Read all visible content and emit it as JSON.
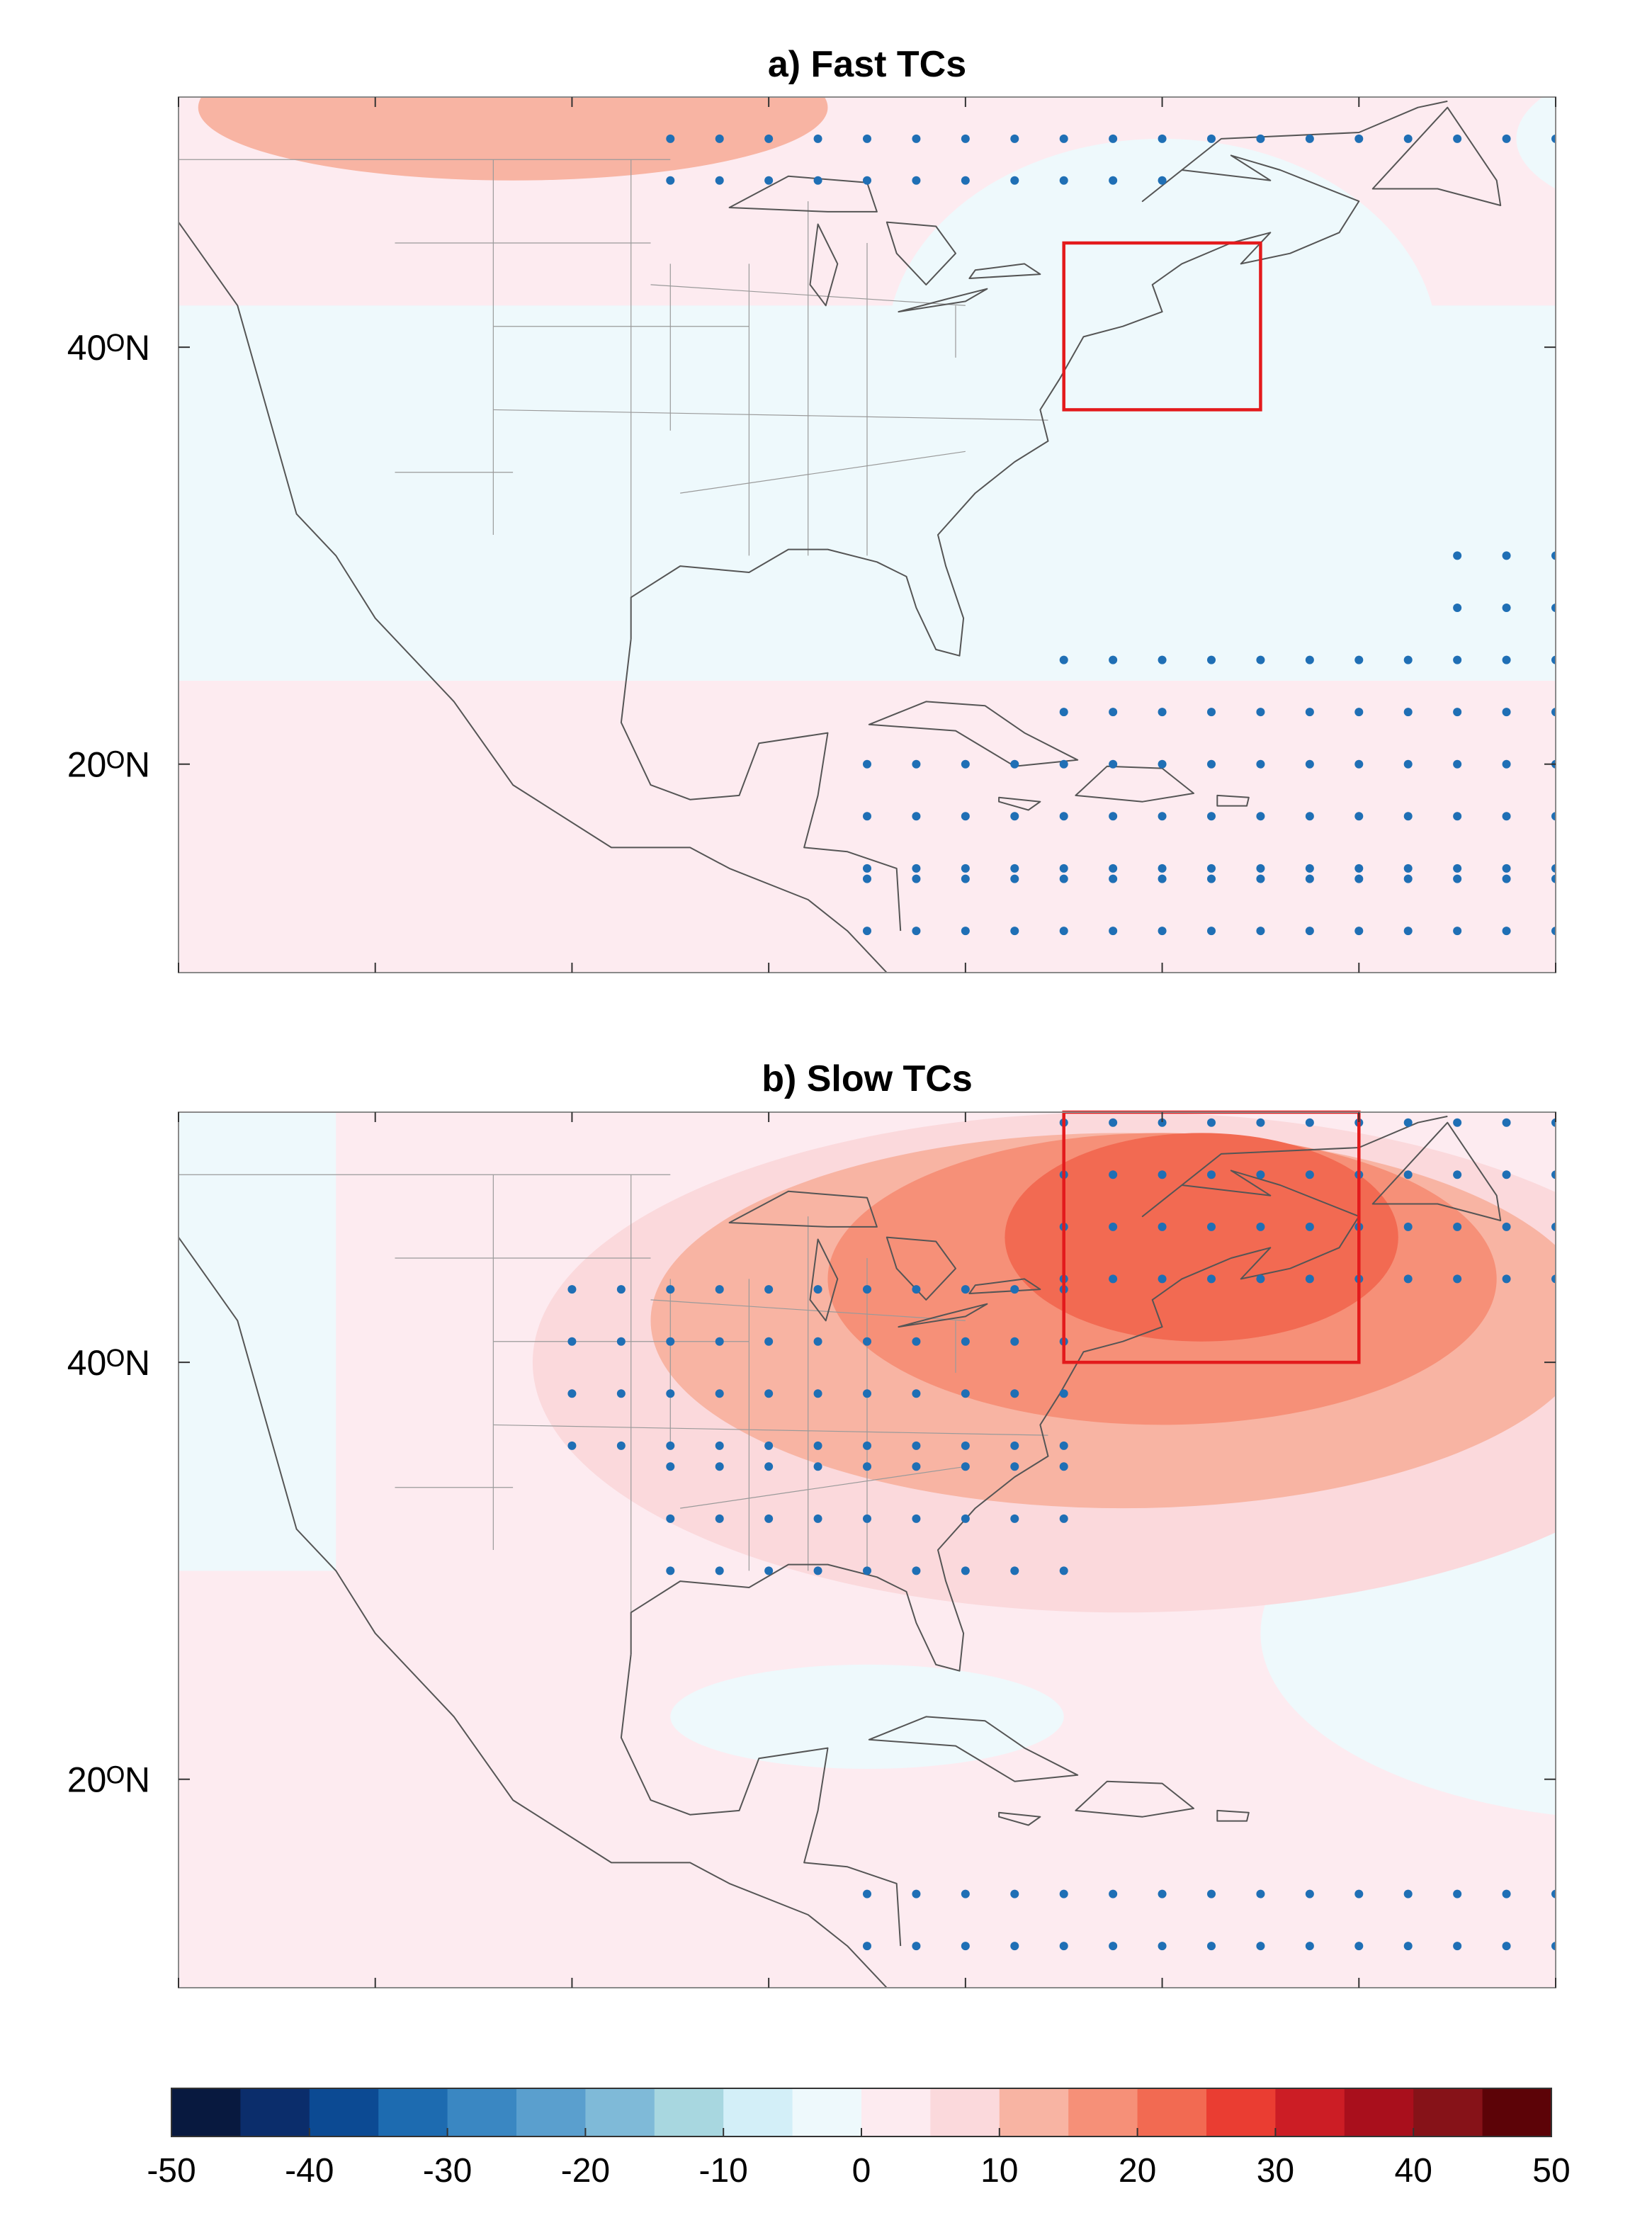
{
  "panels": [
    {
      "id": "a",
      "title": "a) Fast TCs",
      "y_tick_labels": [
        {
          "lat": 40,
          "label": "40ᴼN"
        },
        {
          "lat": 20,
          "label": "20ᴼN"
        }
      ],
      "red_box": {
        "lon": [
          -75,
          -65
        ],
        "lat": [
          37,
          45
        ]
      },
      "field": [
        {
          "level": 20,
          "shape": "ellipse",
          "center": [
            -105,
            52.5
          ],
          "radii": [
            6,
            2
          ]
        },
        {
          "level": 10,
          "shape": "ellipse",
          "center": [
            -103,
            51.5
          ],
          "radii": [
            16,
            3.5
          ]
        },
        {
          "level": -5,
          "shape": "ellipse",
          "center": [
            -70,
            40
          ],
          "radii": [
            14,
            10
          ]
        },
        {
          "level": -5,
          "shape": "ellipse",
          "center": [
            -42,
            50
          ],
          "radii": [
            10,
            4
          ]
        },
        {
          "level": 5,
          "shape": "ellipse",
          "center": [
            -30,
            27
          ],
          "radii": [
            6,
            4
          ]
        }
      ],
      "stipple_regions": [
        {
          "lon": [
            -85,
            -25
          ],
          "lat": [
            12,
            15
          ]
        },
        {
          "lon": [
            -85,
            -25
          ],
          "lat": [
            15,
            20
          ]
        },
        {
          "lon": [
            -75,
            -25
          ],
          "lat": [
            20,
            25
          ]
        },
        {
          "lon": [
            -45,
            -25
          ],
          "lat": [
            30,
            32
          ]
        },
        {
          "lon": [
            -55,
            -25
          ],
          "lat": [
            25,
            30
          ]
        },
        {
          "lon": [
            -95,
            -30
          ],
          "lat": [
            50,
            52
          ]
        },
        {
          "lon": [
            -95,
            -70
          ],
          "lat": [
            48,
            50
          ]
        }
      ]
    },
    {
      "id": "b",
      "title": "b) Slow TCs",
      "y_tick_labels": [
        {
          "lat": 40,
          "label": "40ᴼN"
        },
        {
          "lat": 20,
          "label": "20ᴼN"
        }
      ],
      "red_box": {
        "lon": [
          -75,
          -60
        ],
        "lat": [
          40,
          52
        ]
      },
      "field": [
        {
          "level": 5,
          "shape": "ellipse",
          "center": [
            -72,
            40
          ],
          "radii": [
            30,
            12
          ]
        },
        {
          "level": 10,
          "shape": "ellipse",
          "center": [
            -72,
            42
          ],
          "radii": [
            24,
            9
          ]
        },
        {
          "level": 15,
          "shape": "ellipse",
          "center": [
            -70,
            44
          ],
          "radii": [
            17,
            7
          ]
        },
        {
          "level": 20,
          "shape": "ellipse",
          "center": [
            -68,
            46
          ],
          "radii": [
            10,
            5
          ]
        },
        {
          "level": -5,
          "shape": "ellipse",
          "center": [
            -38,
            28
          ],
          "radii": [
            12,
            5
          ]
        },
        {
          "level": -5,
          "shape": "ellipse",
          "center": [
            -85,
            23
          ],
          "radii": [
            10,
            2.5
          ]
        },
        {
          "level": -5,
          "shape": "ellipse",
          "center": [
            -118,
            43
          ],
          "radii": [
            4,
            9
          ]
        }
      ],
      "stipple_regions": [
        {
          "lon": [
            -100,
            -75
          ],
          "lat": [
            36,
            44
          ]
        },
        {
          "lon": [
            -75,
            -25
          ],
          "lat": [
            44,
            52
          ]
        },
        {
          "lon": [
            -95,
            -75
          ],
          "lat": [
            30,
            36
          ]
        },
        {
          "lon": [
            -85,
            -75
          ],
          "lat": [
            12,
            15
          ]
        },
        {
          "lon": [
            -85,
            -25
          ],
          "lat": [
            12,
            15
          ]
        }
      ]
    }
  ],
  "colorbar": {
    "ticks": [
      "-50",
      "-40",
      "-30",
      "-20",
      "-10",
      "0",
      "10",
      "20",
      "30",
      "40",
      "50"
    ],
    "colors": [
      "#08193f",
      "#0b2d6b",
      "#0c4a93",
      "#1d6bb0",
      "#3a87c2",
      "#5a9fce",
      "#7fbad8",
      "#a8d7e0",
      "#d3eff8",
      "#eef9fc",
      "#fdebf0",
      "#fbd9dc",
      "#f8b4a3",
      "#f69078",
      "#f26a52",
      "#ea3d32",
      "#cc1d25",
      "#a90f1c",
      "#861218",
      "#5c0307"
    ]
  }
}
